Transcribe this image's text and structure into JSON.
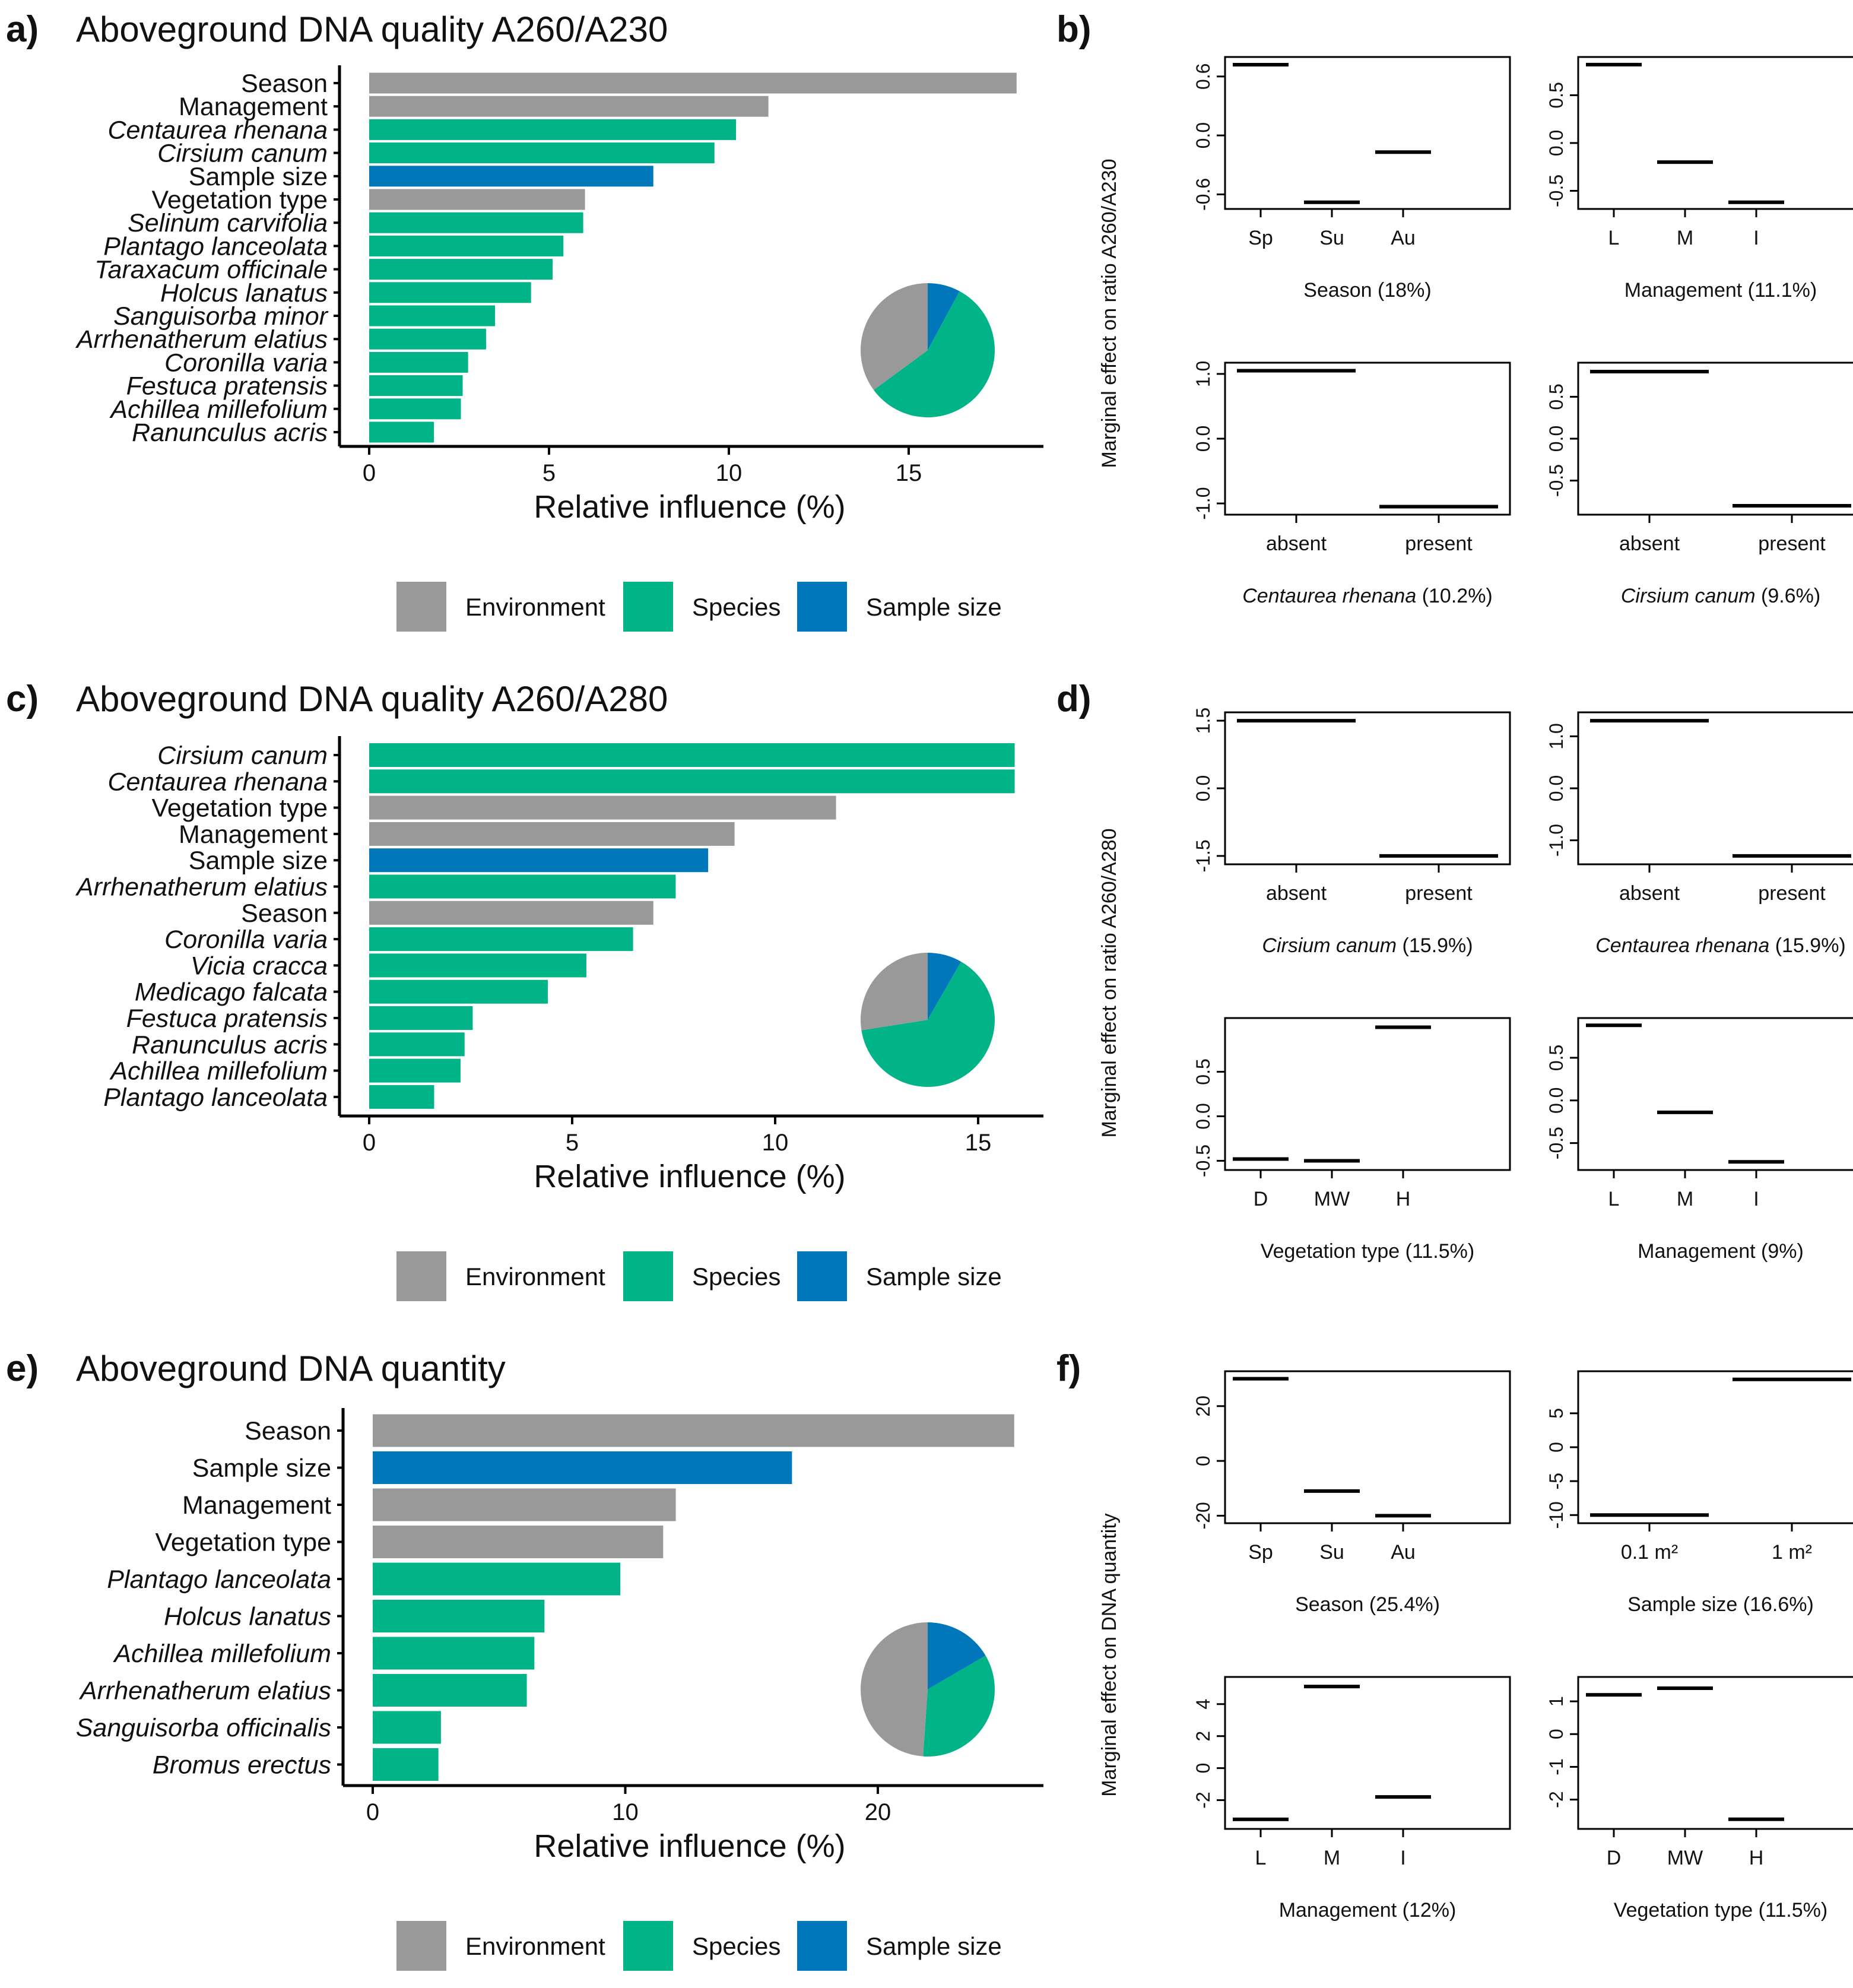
{
  "colors": {
    "Environment": "#999999",
    "Species": "#00B487",
    "Sample size": "#0077BB"
  },
  "common": {
    "legend": [
      "Environment",
      "Species",
      "Sample size"
    ],
    "xlabel": "Relative influence (%)"
  },
  "panels": [
    {
      "label": "a)",
      "title": "Aboveground DNA quality A260/A230",
      "bars": [
        {
          "name": "Season",
          "value": 18.0,
          "group": "Environment",
          "italic": false
        },
        {
          "name": "Management",
          "value": 11.1,
          "group": "Environment",
          "italic": false
        },
        {
          "name": "Centaurea rhenana",
          "value": 10.2,
          "group": "Species",
          "italic": true
        },
        {
          "name": "Cirsium canum",
          "value": 9.6,
          "group": "Species",
          "italic": true
        },
        {
          "name": "Sample size",
          "value": 7.9,
          "group": "Sample size",
          "italic": false
        },
        {
          "name": "Vegetation type",
          "value": 6.0,
          "group": "Environment",
          "italic": false
        },
        {
          "name": "Selinum carvifolia",
          "value": 5.95,
          "group": "Species",
          "italic": true
        },
        {
          "name": "Plantago lanceolata",
          "value": 5.4,
          "group": "Species",
          "italic": true
        },
        {
          "name": "Taraxacum officinale",
          "value": 5.1,
          "group": "Species",
          "italic": true
        },
        {
          "name": "Holcus lanatus",
          "value": 4.5,
          "group": "Species",
          "italic": true
        },
        {
          "name": "Sanguisorba minor",
          "value": 3.5,
          "group": "Species",
          "italic": true
        },
        {
          "name": "Arrhenatherum elatius",
          "value": 3.25,
          "group": "Species",
          "italic": true
        },
        {
          "name": "Coronilla varia",
          "value": 2.75,
          "group": "Species",
          "italic": true
        },
        {
          "name": "Festuca pratensis",
          "value": 2.6,
          "group": "Species",
          "italic": true
        },
        {
          "name": "Achillea millefolium",
          "value": 2.55,
          "group": "Species",
          "italic": true
        },
        {
          "name": "Ranunculus acris",
          "value": 1.8,
          "group": "Species",
          "italic": true
        }
      ],
      "xticks": [
        0,
        5,
        10,
        15
      ],
      "xlim": [
        -0.8,
        19.0
      ],
      "pie": [
        {
          "group": "Environment",
          "value": 35.1
        },
        {
          "group": "Species",
          "value": 57.0
        },
        {
          "group": "Sample size",
          "value": 7.9
        }
      ],
      "effects_label": "b)",
      "effects_ylabel": "Marginal effect on ratio A260/A230",
      "effects": [
        {
          "title": "Season",
          "pct": "(18%)",
          "italic": false,
          "cats": [
            "Sp",
            "Su",
            "Au"
          ],
          "values": [
            0.72,
            -0.68,
            -0.17
          ],
          "ylim": [
            -0.7,
            0.75
          ],
          "yticks": [
            "-0.6",
            "0.0",
            "0.6"
          ],
          "ytickvals": [
            -0.6,
            0.0,
            0.6
          ]
        },
        {
          "title": "Management",
          "pct": "(11.1%)",
          "italic": false,
          "cats": [
            "L",
            "M",
            "I"
          ],
          "values": [
            0.82,
            -0.2,
            -0.62
          ],
          "ylim": [
            -0.64,
            0.85
          ],
          "yticks": [
            "-0.5",
            "0.0",
            "0.5"
          ],
          "ytickvals": [
            -0.5,
            0.0,
            0.5
          ]
        },
        {
          "title": "Centaurea rhenana",
          "pct": "(10.2%)",
          "italic": true,
          "cats": [
            "absent",
            "present"
          ],
          "values": [
            1.05,
            -1.05
          ],
          "ylim": [
            -1.1,
            1.1
          ],
          "yticks": [
            "-1.0",
            "0.0",
            "1.0"
          ],
          "ytickvals": [
            -1.0,
            0.0,
            1.0
          ]
        },
        {
          "title": "Cirsium canum",
          "pct": "(9.6%)",
          "italic": true,
          "cats": [
            "absent",
            "present"
          ],
          "values": [
            0.8,
            -0.8
          ],
          "ylim": [
            -0.85,
            0.85
          ],
          "yticks": [
            "-0.5",
            "0.0",
            "0.5"
          ],
          "ytickvals": [
            -0.5,
            0.0,
            0.5
          ]
        }
      ]
    },
    {
      "label": "c)",
      "title": "Aboveground DNA quality A260/A280",
      "bars": [
        {
          "name": "Cirsium canum",
          "value": 15.9,
          "group": "Species",
          "italic": true
        },
        {
          "name": "Centaurea rhenana",
          "value": 15.9,
          "group": "Species",
          "italic": true
        },
        {
          "name": "Vegetation type",
          "value": 11.5,
          "group": "Environment",
          "italic": false
        },
        {
          "name": "Management",
          "value": 9.0,
          "group": "Environment",
          "italic": false
        },
        {
          "name": "Sample size",
          "value": 8.35,
          "group": "Sample size",
          "italic": false
        },
        {
          "name": "Arrhenatherum elatius",
          "value": 7.55,
          "group": "Species",
          "italic": true
        },
        {
          "name": "Season",
          "value": 7.0,
          "group": "Environment",
          "italic": false
        },
        {
          "name": "Coronilla varia",
          "value": 6.5,
          "group": "Species",
          "italic": true
        },
        {
          "name": "Vicia cracca",
          "value": 5.35,
          "group": "Species",
          "italic": true
        },
        {
          "name": "Medicago falcata",
          "value": 4.4,
          "group": "Species",
          "italic": true
        },
        {
          "name": "Festuca pratensis",
          "value": 2.55,
          "group": "Species",
          "italic": true
        },
        {
          "name": "Ranunculus acris",
          "value": 2.35,
          "group": "Species",
          "italic": true
        },
        {
          "name": "Achillea millefolium",
          "value": 2.25,
          "group": "Species",
          "italic": true
        },
        {
          "name": "Plantago lanceolata",
          "value": 1.6,
          "group": "Species",
          "italic": true
        }
      ],
      "xticks": [
        0,
        5,
        10,
        15
      ],
      "xlim": [
        -0.8,
        16.7
      ],
      "pie": [
        {
          "group": "Environment",
          "value": 27.5
        },
        {
          "group": "Species",
          "value": 64.2
        },
        {
          "group": "Sample size",
          "value": 8.3
        }
      ],
      "effects_label": "d)",
      "effects_ylabel": "Marginal effect on ratio A260/A280",
      "effects": [
        {
          "title": "Cirsium canum",
          "pct": "(15.9%)",
          "italic": true,
          "cats": [
            "absent",
            "present"
          ],
          "values": [
            1.5,
            -1.5
          ],
          "ylim": [
            -1.58,
            1.58
          ],
          "yticks": [
            "-1.5",
            "0.0",
            "1.5"
          ],
          "ytickvals": [
            -1.5,
            0.0,
            1.5
          ]
        },
        {
          "title": "Centaurea rhenana",
          "pct": "(15.9%)",
          "italic": true,
          "cats": [
            "absent",
            "present"
          ],
          "values": [
            1.3,
            -1.3
          ],
          "ylim": [
            -1.37,
            1.37
          ],
          "yticks": [
            "-1.0",
            "0.0",
            "1.0"
          ],
          "ytickvals": [
            -1.0,
            0.0,
            1.0
          ]
        },
        {
          "title": "Vegetation type",
          "pct": "(11.5%)",
          "italic": false,
          "cats": [
            "D",
            "MW",
            "H"
          ],
          "values": [
            -0.48,
            -0.5,
            1.0
          ],
          "ylim": [
            -0.55,
            1.05
          ],
          "yticks": [
            "-0.5",
            "0.0",
            "0.5"
          ],
          "ytickvals": [
            -0.5,
            0.0,
            0.5
          ]
        },
        {
          "title": "Management",
          "pct": "(9%)",
          "italic": false,
          "cats": [
            "L",
            "M",
            "I"
          ],
          "values": [
            0.88,
            -0.14,
            -0.72
          ],
          "ylim": [
            -0.76,
            0.91
          ],
          "yticks": [
            "-0.5",
            "0.0",
            "0.5"
          ],
          "ytickvals": [
            -0.5,
            0.0,
            0.5
          ]
        }
      ]
    },
    {
      "label": "e)",
      "title": "Aboveground DNA quantity",
      "bars": [
        {
          "name": "Season",
          "value": 25.4,
          "group": "Environment",
          "italic": false
        },
        {
          "name": "Sample size",
          "value": 16.6,
          "group": "Sample size",
          "italic": false
        },
        {
          "name": "Management",
          "value": 12.0,
          "group": "Environment",
          "italic": false
        },
        {
          "name": "Vegetation type",
          "value": 11.5,
          "group": "Environment",
          "italic": false
        },
        {
          "name": "Plantago lanceolata",
          "value": 9.8,
          "group": "Species",
          "italic": true
        },
        {
          "name": "Holcus lanatus",
          "value": 6.8,
          "group": "Species",
          "italic": true
        },
        {
          "name": "Achillea millefolium",
          "value": 6.4,
          "group": "Species",
          "italic": true
        },
        {
          "name": "Arrhenatherum elatius",
          "value": 6.1,
          "group": "Species",
          "italic": true
        },
        {
          "name": "Sanguisorba officinalis",
          "value": 2.7,
          "group": "Species",
          "italic": true
        },
        {
          "name": "Bromus erectus",
          "value": 2.6,
          "group": "Species",
          "italic": true
        }
      ],
      "xticks": [
        0,
        10,
        20
      ],
      "xlim": [
        -1.2,
        26.6
      ],
      "pie": [
        {
          "group": "Environment",
          "value": 48.9
        },
        {
          "group": "Species",
          "value": 34.5
        },
        {
          "group": "Sample size",
          "value": 16.6
        }
      ],
      "effects_label": "f)",
      "effects_ylabel": "Marginal effect on DNA quantity",
      "effects": [
        {
          "title": "Season",
          "pct": "(25.4%)",
          "italic": false,
          "cats": [
            "Sp",
            "Su",
            "Au"
          ],
          "values": [
            30,
            -11,
            -20
          ],
          "ylim": [
            -21,
            31
          ],
          "yticks": [
            "-20",
            "0",
            "20"
          ],
          "ytickvals": [
            -20,
            0,
            20
          ]
        },
        {
          "title": "Sample size",
          "pct": "(16.6%)",
          "italic": false,
          "cats": [
            "0.1 m²",
            "1 m²"
          ],
          "values": [
            -10,
            10
          ],
          "ylim": [
            -10.5,
            10.5
          ],
          "yticks": [
            "-10",
            "-5",
            "0",
            "5"
          ],
          "ytickvals": [
            -10,
            -5,
            0,
            5
          ]
        },
        {
          "title": "Management",
          "pct": "(12%)",
          "italic": false,
          "cats": [
            "L",
            "M",
            "I"
          ],
          "values": [
            -3.2,
            5.1,
            -1.8
          ],
          "ylim": [
            -3.5,
            5.4
          ],
          "yticks": [
            "-2",
            "0",
            "2",
            "4"
          ],
          "ytickvals": [
            -2,
            0,
            2,
            4
          ]
        },
        {
          "title": "Vegetation type",
          "pct": "(11.5%)",
          "italic": false,
          "cats": [
            "D",
            "MW",
            "H"
          ],
          "values": [
            1.2,
            1.4,
            -2.6
          ],
          "ylim": [
            -2.75,
            1.6
          ],
          "yticks": [
            "-2",
            "-1",
            "0",
            "1"
          ],
          "ytickvals": [
            -2,
            -1,
            0,
            1
          ]
        }
      ]
    }
  ]
}
